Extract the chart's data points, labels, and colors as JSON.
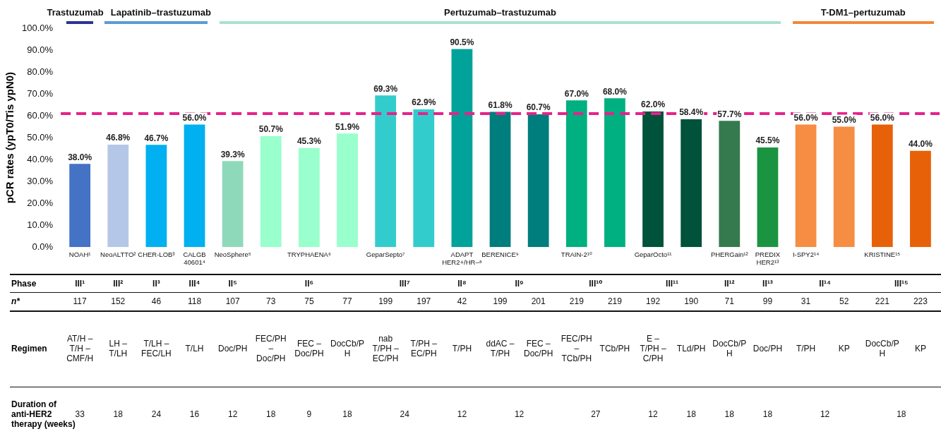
{
  "chart_data": {
    "type": "bar",
    "ylabel": "pCR rates (ypT0/Tis ypN0)",
    "categories": [
      "NOAH¹",
      "NeoALTTO²",
      "CHER-LOB³",
      "CALGB 40601⁴",
      "NeoSphere⁵",
      null,
      "TRYPHAENA⁶",
      null,
      "GeparSepto⁷",
      null,
      "ADAPT HER2+/HR–⁸",
      "BERENICE⁹",
      null,
      "TRAIN-2¹⁰",
      null,
      "GeparOcto¹¹",
      null,
      "PHERGain¹²",
      "PREDIX HER2¹³",
      "I-SPY2¹⁴",
      null,
      "KRISTINE¹⁵",
      null
    ],
    "values": [
      38.0,
      46.8,
      46.7,
      56.0,
      39.3,
      50.7,
      45.3,
      51.9,
      69.3,
      62.9,
      90.5,
      61.8,
      60.7,
      67.0,
      68.0,
      62.0,
      58.4,
      57.7,
      45.5,
      56.0,
      55.0,
      56.0,
      44.0
    ],
    "value_labels": [
      "38.0%",
      "46.8%",
      "46.7%",
      "56.0%",
      "39.3%",
      "50.7%",
      "45.3%",
      "51.9%",
      "69.3%",
      "62.9%",
      "90.5%",
      "61.8%",
      "60.7%",
      "67.0%",
      "68.0%",
      "62.0%",
      "58.4%",
      "57.7%",
      "45.5%",
      "56.0%",
      "55.0%",
      "56.0%",
      "44.0%"
    ],
    "colors": [
      "#4472c4",
      "#b4c7e7",
      "#00b0f0",
      "#00b0f0",
      "#8fd9bb",
      "#99ffcc",
      "#99ffcc",
      "#99ffcc",
      "#33cccc",
      "#33cccc",
      "#00a29a",
      "#007d7d",
      "#007d7d",
      "#00b080",
      "#00b080",
      "#00523a",
      "#00523a",
      "#357a4e",
      "#1a9440",
      "#f58d42",
      "#f58d42",
      "#e66108",
      "#e66108"
    ],
    "ylim": [
      0,
      100
    ],
    "yticks": [
      {
        "value": 0,
        "label": "0.0%"
      },
      {
        "value": 10,
        "label": "10.0%"
      },
      {
        "value": 20,
        "label": "20.0%"
      },
      {
        "value": 30,
        "label": "30.0%"
      },
      {
        "value": 40,
        "label": "40.0%"
      },
      {
        "value": 50,
        "label": "50.0%"
      },
      {
        "value": 60,
        "label": "60.0%"
      },
      {
        "value": 70,
        "label": "70.0%"
      },
      {
        "value": 80,
        "label": "80.0%"
      },
      {
        "value": 90,
        "label": "90.0%"
      },
      {
        "value": 100,
        "label": "100.0%"
      }
    ],
    "ref_lines": [
      {
        "axis": "y",
        "value": 61,
        "color": "#e6228a",
        "line_style": "dashed"
      }
    ],
    "annotations": [
      "Trastuzumab",
      "Lapatinib–trastuzumab",
      "Pertuzumab–trastuzumab",
      "T-DM1–pertuzumab",
      "Phase",
      "III¹",
      "III²",
      "II³",
      "III⁴",
      "II⁵",
      "II⁶",
      "III⁷",
      "II⁸",
      "II⁹",
      "III¹⁰",
      "III¹¹",
      "II¹²",
      "II¹³",
      "II¹⁴",
      "III¹⁵",
      "n*",
      "117",
      "152",
      "46",
      "118",
      "107",
      "73",
      "75",
      "77",
      "199",
      "197",
      "42",
      "199",
      "201",
      "219",
      "219",
      "192",
      "190",
      "71",
      "99",
      "31",
      "52",
      "221",
      "223",
      "Regimen",
      "AT/H – T/H – CMF/H",
      "LH – T/LH",
      "T/LH – FEC/LH",
      "T/LH",
      "Doc/PH",
      "FEC/PH – Doc/PH",
      "FEC – Doc/PH",
      "DocCb/PH",
      "nab T/PH – EC/PH",
      "T/PH – EC/PH",
      "T/PH",
      "ddAC – T/PH",
      "FEC – Doc/PH",
      "FEC/PH – TCb/PH",
      "TCb/PH",
      "E – T/PH – C/PH",
      "TLd/PH",
      "DocCb/PH",
      "Doc/PH",
      "T/PH",
      "KP",
      "DocCb/PH",
      "KP",
      "Duration of anti-HER2 therapy (weeks)",
      "33",
      "18",
      "24",
      "16",
      "12",
      "18",
      "9",
      "18",
      "24",
      "12",
      "12",
      "27",
      "12",
      "18",
      "18",
      "18",
      "12",
      "18"
    ]
  }
}
